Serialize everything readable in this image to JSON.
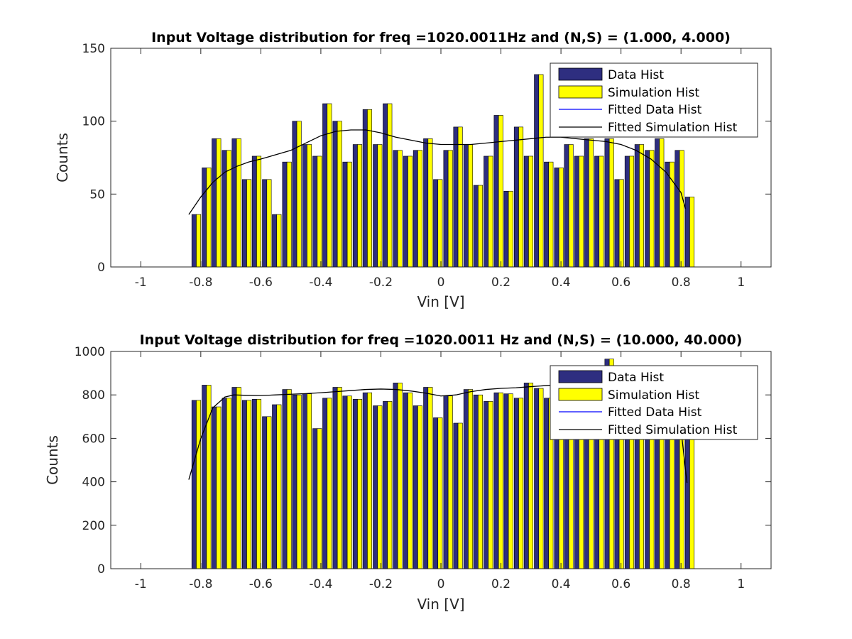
{
  "chart_data": [
    {
      "type": "bar",
      "title": "Input Voltage distribution for freq =1020.0011Hz and (N,S) = (1.000, 4.000)",
      "xlabel": "Vin [V]",
      "ylabel": "Counts",
      "xlim": [
        -1.1,
        1.1
      ],
      "ylim": [
        0,
        150
      ],
      "xticks": [
        -1,
        -0.8,
        -0.6,
        -0.4,
        -0.2,
        0,
        0.2,
        0.4,
        0.6,
        0.8,
        1
      ],
      "xtick_labels": [
        "-1",
        "-0.8",
        "-0.6",
        "-0.4",
        "-0.2",
        "0",
        "0.2",
        "0.4",
        "0.6",
        "0.8",
        "1"
      ],
      "yticks": [
        0,
        50,
        100,
        150
      ],
      "ytick_labels": [
        "0",
        "50",
        "100",
        "150"
      ],
      "grid": false,
      "legend_position": "top-right",
      "x": [
        -0.815,
        -0.781,
        -0.748,
        -0.714,
        -0.681,
        -0.647,
        -0.614,
        -0.58,
        -0.547,
        -0.513,
        -0.48,
        -0.446,
        -0.412,
        -0.379,
        -0.345,
        -0.312,
        -0.278,
        -0.245,
        -0.211,
        -0.178,
        -0.144,
        -0.11,
        -0.077,
        -0.043,
        -0.01,
        0.024,
        0.057,
        0.091,
        0.124,
        0.158,
        0.192,
        0.225,
        0.259,
        0.292,
        0.326,
        0.359,
        0.393,
        0.426,
        0.46,
        0.493,
        0.527,
        0.561,
        0.594,
        0.628,
        0.661,
        0.695,
        0.728,
        0.762,
        0.795,
        0.829
      ],
      "series": [
        {
          "name": "Data Hist",
          "kind": "bar",
          "color": "#2e2e80",
          "values": [
            36,
            68,
            88,
            80,
            88,
            60,
            76,
            60,
            36,
            72,
            100,
            84,
            76,
            112,
            100,
            72,
            84,
            108,
            84,
            112,
            80,
            76,
            80,
            88,
            60,
            80,
            96,
            84,
            56,
            76,
            104,
            52,
            96,
            76,
            132,
            72,
            68,
            84,
            76,
            88,
            76,
            88,
            60,
            76,
            84,
            80,
            88,
            72,
            80,
            48
          ]
        },
        {
          "name": "Simulation Hist",
          "kind": "bar",
          "color": "#ffff00",
          "values": [
            36,
            68,
            88,
            80,
            88,
            60,
            76,
            60,
            36,
            72,
            100,
            84,
            76,
            112,
            100,
            72,
            84,
            108,
            84,
            112,
            80,
            76,
            80,
            88,
            60,
            80,
            96,
            84,
            56,
            76,
            104,
            52,
            96,
            76,
            132,
            72,
            68,
            84,
            76,
            88,
            76,
            88,
            60,
            76,
            84,
            80,
            88,
            72,
            80,
            48
          ]
        },
        {
          "name": "Fitted Data Hist",
          "kind": "line",
          "color": "#0000ff",
          "x": [],
          "values": []
        },
        {
          "name": "Fitted Simulation Hist",
          "kind": "line",
          "color": "#000000",
          "x": [
            -0.84,
            -0.8,
            -0.76,
            -0.72,
            -0.68,
            -0.64,
            -0.6,
            -0.55,
            -0.5,
            -0.45,
            -0.4,
            -0.35,
            -0.3,
            -0.25,
            -0.2,
            -0.15,
            -0.1,
            -0.05,
            0.0,
            0.05,
            0.1,
            0.15,
            0.2,
            0.25,
            0.3,
            0.35,
            0.4,
            0.45,
            0.5,
            0.55,
            0.6,
            0.65,
            0.7,
            0.75,
            0.8,
            0.815
          ],
          "values": [
            36,
            48,
            58,
            65,
            69,
            72,
            74,
            77,
            80,
            85,
            90,
            93,
            94,
            94,
            92,
            89,
            87,
            85,
            84,
            84,
            84,
            85,
            86,
            87,
            88,
            89,
            89,
            88,
            87,
            86,
            84,
            80,
            74,
            65,
            51,
            40
          ]
        }
      ]
    },
    {
      "type": "bar",
      "title": "Input Voltage distribution for freq =1020.0011 Hz and (N,S) = (10.000, 40.000)",
      "xlabel": "Vin [V]",
      "ylabel": "Counts",
      "xlim": [
        -1.1,
        1.1
      ],
      "ylim": [
        0,
        1000
      ],
      "xticks": [
        -1,
        -0.8,
        -0.6,
        -0.4,
        -0.2,
        0,
        0.2,
        0.4,
        0.6,
        0.8,
        1
      ],
      "xtick_labels": [
        "-1",
        "-0.8",
        "-0.6",
        "-0.4",
        "-0.2",
        "0",
        "0.2",
        "0.4",
        "0.6",
        "0.8",
        "1"
      ],
      "yticks": [
        0,
        200,
        400,
        600,
        800,
        1000
      ],
      "ytick_labels": [
        "0",
        "200",
        "400",
        "600",
        "800",
        "1000"
      ],
      "grid": false,
      "legend_position": "top-right",
      "x": [
        -0.815,
        -0.781,
        -0.748,
        -0.714,
        -0.681,
        -0.647,
        -0.614,
        -0.58,
        -0.547,
        -0.513,
        -0.48,
        -0.446,
        -0.412,
        -0.379,
        -0.345,
        -0.312,
        -0.278,
        -0.245,
        -0.211,
        -0.178,
        -0.144,
        -0.11,
        -0.077,
        -0.043,
        -0.01,
        0.024,
        0.057,
        0.091,
        0.124,
        0.158,
        0.192,
        0.225,
        0.259,
        0.292,
        0.326,
        0.359,
        0.393,
        0.426,
        0.46,
        0.493,
        0.527,
        0.561,
        0.594,
        0.628,
        0.661,
        0.695,
        0.728,
        0.762,
        0.795,
        0.829
      ],
      "series": [
        {
          "name": "Data Hist",
          "kind": "bar",
          "color": "#2e2e80",
          "values": [
            775,
            845,
            745,
            785,
            835,
            775,
            780,
            700,
            755,
            825,
            800,
            805,
            645,
            785,
            835,
            795,
            780,
            810,
            750,
            770,
            855,
            810,
            750,
            835,
            695,
            795,
            670,
            825,
            800,
            770,
            810,
            805,
            785,
            855,
            830,
            785,
            790,
            800,
            810,
            830,
            880,
            965,
            870,
            890,
            860,
            870,
            860,
            845,
            800,
            700
          ]
        },
        {
          "name": "Simulation Hist",
          "kind": "bar",
          "color": "#ffff00",
          "values": [
            775,
            845,
            745,
            785,
            835,
            775,
            780,
            700,
            755,
            825,
            800,
            805,
            645,
            785,
            835,
            795,
            780,
            810,
            750,
            770,
            855,
            810,
            750,
            835,
            695,
            795,
            670,
            825,
            800,
            770,
            810,
            805,
            785,
            855,
            830,
            785,
            790,
            800,
            810,
            830,
            880,
            965,
            870,
            890,
            860,
            870,
            860,
            845,
            800,
            700
          ]
        },
        {
          "name": "Fitted Data Hist",
          "kind": "line",
          "color": "#0000ff",
          "x": [],
          "values": []
        },
        {
          "name": "Fitted Simulation Hist",
          "kind": "line",
          "color": "#000000",
          "x": [
            -0.84,
            -0.8,
            -0.76,
            -0.72,
            -0.69,
            -0.65,
            -0.6,
            -0.55,
            -0.5,
            -0.45,
            -0.4,
            -0.35,
            -0.3,
            -0.25,
            -0.2,
            -0.15,
            -0.1,
            -0.05,
            0.0,
            0.05,
            0.1,
            0.15,
            0.2,
            0.25,
            0.3,
            0.35,
            0.4,
            0.45,
            0.5,
            0.55,
            0.6,
            0.65,
            0.7,
            0.75,
            0.78,
            0.8,
            0.82
          ],
          "values": [
            410,
            600,
            740,
            790,
            800,
            798,
            797,
            800,
            803,
            806,
            810,
            815,
            820,
            825,
            827,
            825,
            818,
            808,
            795,
            800,
            815,
            825,
            830,
            833,
            838,
            843,
            848,
            853,
            857,
            862,
            865,
            866,
            865,
            850,
            780,
            640,
            395
          ]
        }
      ]
    }
  ]
}
